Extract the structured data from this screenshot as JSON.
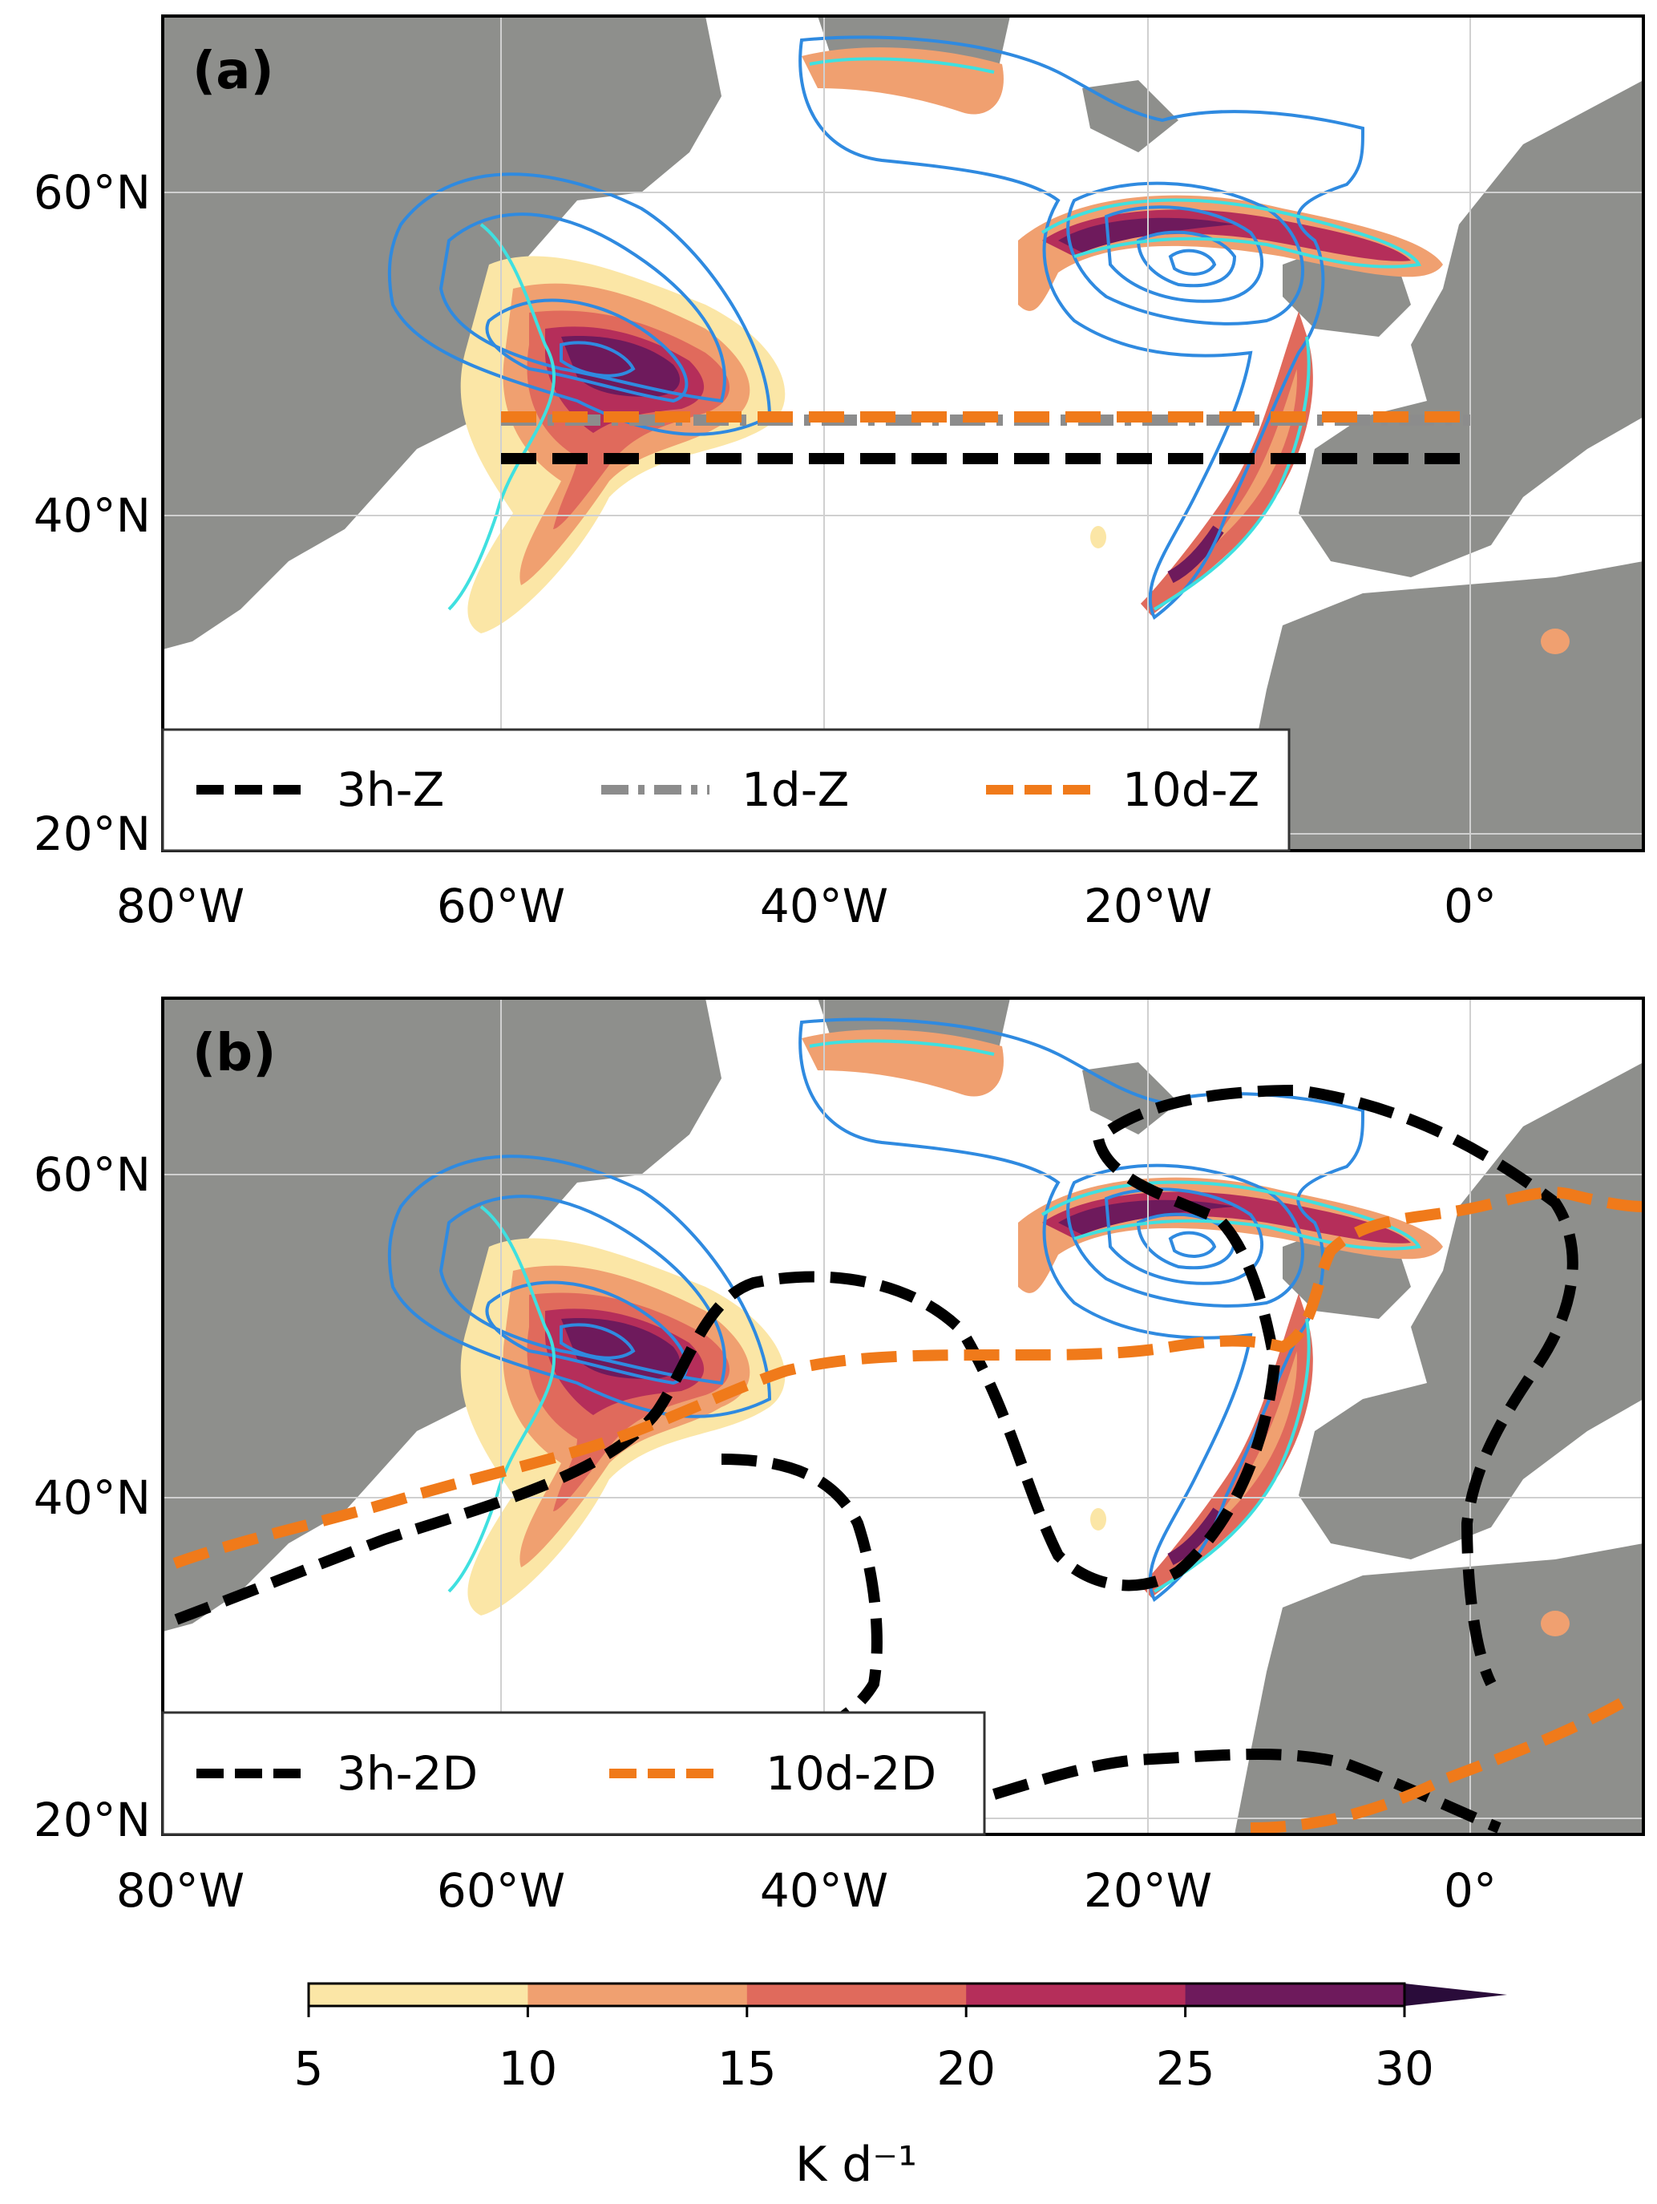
{
  "panels": [
    {
      "id": "a",
      "label": "(a)",
      "legend": [
        {
          "label": "3h-Z",
          "color": "#000000",
          "style": "dashed"
        },
        {
          "label": "1d-Z",
          "color": "#8c8c8c",
          "style": "dashdot"
        },
        {
          "label": "10d-Z",
          "color": "#f07a1a",
          "style": "dashed"
        }
      ]
    },
    {
      "id": "b",
      "label": "(b)",
      "legend": [
        {
          "label": "3h-2D",
          "color": "#000000",
          "style": "dashed"
        },
        {
          "label": "10d-2D",
          "color": "#f07a1a",
          "style": "dashed"
        }
      ]
    }
  ],
  "lat_ticks": [
    "60°N",
    "40°N",
    "20°N"
  ],
  "lon_ticks": [
    "80°W",
    "60°W",
    "40°W",
    "20°W",
    "0°"
  ],
  "colorbar": {
    "ticks": [
      "5",
      "10",
      "15",
      "20",
      "25",
      "30"
    ],
    "label": "K d⁻¹",
    "colors": [
      "#fbe6a6",
      "#f0a070",
      "#e06a5c",
      "#b52e5a",
      "#6e1a5c",
      "#2a0c3a"
    ]
  },
  "colors": {
    "land": "#8e8f8c",
    "contour_outer": "#2f8ae0",
    "contour_inner": "#3fe0e0"
  }
}
